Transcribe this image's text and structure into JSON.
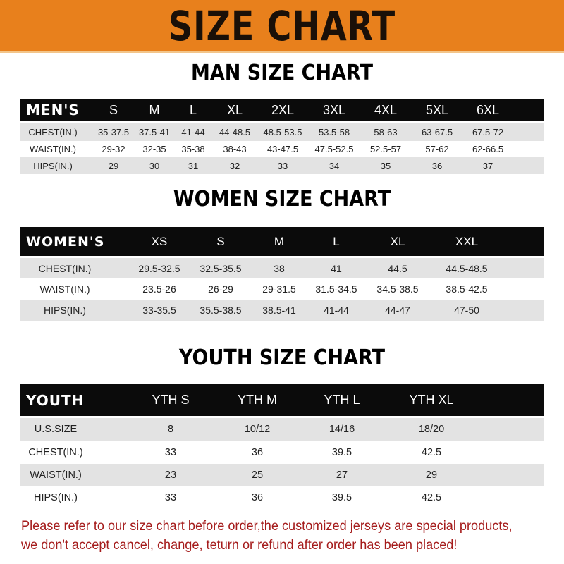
{
  "banner": {
    "title": "SIZE CHART",
    "color": "#e8801c"
  },
  "men": {
    "title": "MAN SIZE CHART",
    "header": [
      "MEN'S",
      "S",
      "M",
      "L",
      "XL",
      "2XL",
      "3XL",
      "4XL",
      "5XL",
      "6XL"
    ],
    "rows": [
      [
        "CHEST(IN.)",
        "35-37.5",
        "37.5-41",
        "41-44",
        "44-48.5",
        "48.5-53.5",
        "53.5-58",
        "58-63",
        "63-67.5",
        "67.5-72"
      ],
      [
        "WAIST(IN.)",
        "29-32",
        "32-35",
        "35-38",
        "38-43",
        "43-47.5",
        "47.5-52.5",
        "52.5-57",
        "57-62",
        "62-66.5"
      ],
      [
        "HIPS(IN.)",
        "29",
        "30",
        "31",
        "32",
        "33",
        "34",
        "35",
        "36",
        "37"
      ]
    ]
  },
  "women": {
    "title": "WOMEN SIZE CHART",
    "header": [
      "WOMEN'S",
      "XS",
      "S",
      "M",
      "L",
      "XL",
      "XXL"
    ],
    "rows": [
      [
        "CHEST(IN.)",
        "29.5-32.5",
        "32.5-35.5",
        "38",
        "41",
        "44.5",
        "44.5-48.5"
      ],
      [
        "WAIST(IN.)",
        "23.5-26",
        "26-29",
        "29-31.5",
        "31.5-34.5",
        "34.5-38.5",
        "38.5-42.5"
      ],
      [
        "HIPS(IN.)",
        "33-35.5",
        "35.5-38.5",
        "38.5-41",
        "41-44",
        "44-47",
        "47-50"
      ]
    ]
  },
  "youth": {
    "title": "YOUTH SIZE CHART",
    "header": [
      "YOUTH",
      "YTH S",
      "YTH M",
      "YTH L",
      "YTH XL"
    ],
    "rows": [
      [
        "U.S.SIZE",
        "8",
        "10/12",
        "14/16",
        "18/20"
      ],
      [
        "CHEST(IN.)",
        "33",
        "36",
        "39.5",
        "42.5"
      ],
      [
        "WAIST(IN.)",
        "23",
        "25",
        "27",
        "29"
      ],
      [
        "HIPS(IN.)",
        "33",
        "36",
        "39.5",
        "42.5"
      ]
    ]
  },
  "footer": {
    "line1": "Please refer to our size chart before order,the customized jerseys are special products,",
    "line2": "we don't accept cancel, change, teturn or refund after order has been placed!",
    "color": "#a51c1c"
  }
}
